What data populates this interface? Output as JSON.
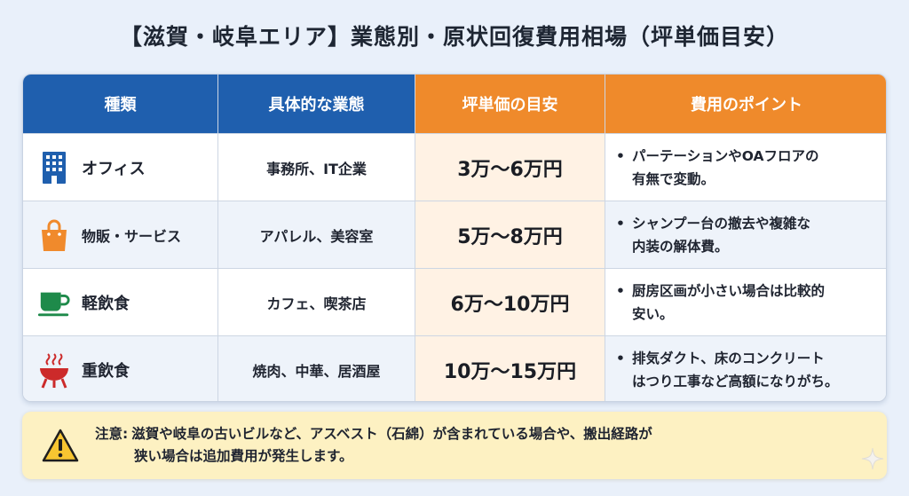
{
  "title": "【滋賀・岐阜エリア】業態別・原状回復費用相場（坪単価目安）",
  "header": {
    "col1": "種類",
    "col2": "具体的な業態",
    "col3": "坪単価の目安",
    "col4": "費用のポイント"
  },
  "rows": [
    {
      "icon": "office-building-icon",
      "type": "オフィス",
      "business": "事務所、IT企業",
      "price": "3万〜6万円",
      "point_line1": "パーテーションやOAフロアの",
      "point_line2": "有無で変動。"
    },
    {
      "icon": "shopping-bag-icon",
      "type": "物販・サービス",
      "business": "アパレル、美容室",
      "price": "5万〜8万円",
      "point_line1": "シャンプー台の撤去や複雑な",
      "point_line2": "内装の解体費。"
    },
    {
      "icon": "coffee-cup-icon",
      "type": "軽飲食",
      "business": "カフェ、喫茶店",
      "price": "6万〜10万円",
      "point_line1": "厨房区画が小さい場合は比較的",
      "point_line2": "安い。"
    },
    {
      "icon": "barbecue-grill-icon",
      "type": "重飲食",
      "business": "焼肉、中華、居酒屋",
      "price": "10万〜15万円",
      "point_line1": "排気ダクト、床のコンクリート",
      "point_line2": "はつり工事など高額になりがち。"
    }
  ],
  "notice": {
    "label": "注意:",
    "line1": "滋賀や岐阜の古いビルなど、アスベスト（石綿）が含まれている場合や、搬出経路が",
    "line2": "狭い場合は追加費用が発生します。",
    "icon": "warning-icon"
  },
  "colors": {
    "header_blue": "#1f5fae",
    "header_orange": "#ef8a2b",
    "price_bg": "#fff2e4",
    "notice_bg": "#fdf1c2",
    "icon_blue": "#1f5fae",
    "icon_orange": "#f08a2c",
    "icon_green": "#1e8a4a",
    "icon_red": "#cc2a2a"
  }
}
